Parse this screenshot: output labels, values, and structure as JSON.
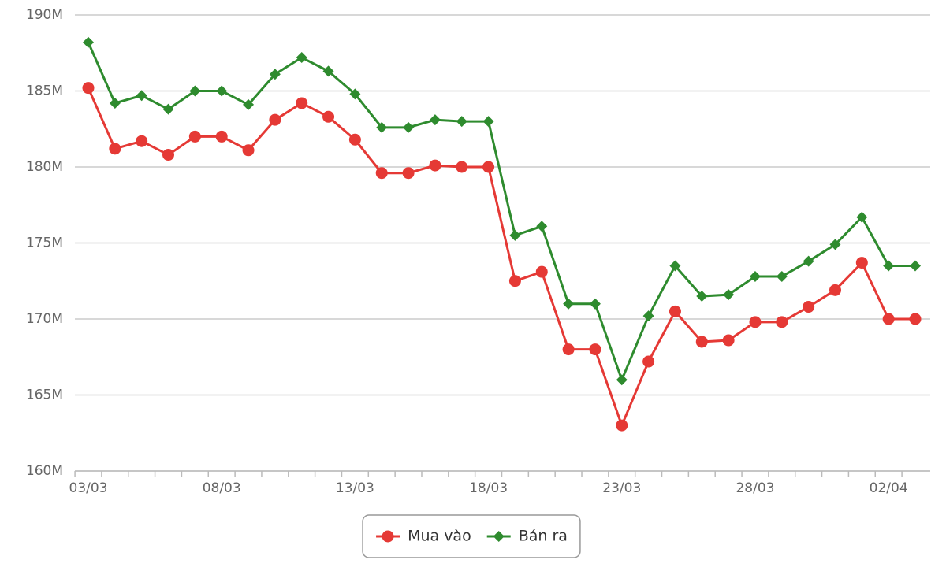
{
  "chart_data": {
    "type": "line",
    "categories": [
      "03/03",
      null,
      null,
      null,
      null,
      "08/03",
      null,
      null,
      null,
      null,
      "13/03",
      null,
      null,
      null,
      null,
      "18/03",
      null,
      null,
      null,
      null,
      "23/03",
      null,
      null,
      null,
      null,
      "28/03",
      null,
      null,
      null,
      null,
      "02/04",
      null
    ],
    "series": [
      {
        "name": "Mua vào",
        "color": "#e53935",
        "marker": "circle",
        "values": [
          185.2,
          181.2,
          181.7,
          180.8,
          182.0,
          182.0,
          181.1,
          183.1,
          184.2,
          183.3,
          181.8,
          179.6,
          179.6,
          180.1,
          180.0,
          180.0,
          172.5,
          173.1,
          168.0,
          168.0,
          163.0,
          167.2,
          170.5,
          168.5,
          168.6,
          169.8,
          169.8,
          170.8,
          171.9,
          173.7,
          170.0,
          170.0
        ]
      },
      {
        "name": "Bán ra",
        "color": "#2e8b2e",
        "marker": "diamond",
        "values": [
          188.2,
          184.2,
          184.7,
          183.8,
          185.0,
          185.0,
          184.1,
          186.1,
          187.2,
          186.3,
          184.8,
          182.6,
          182.6,
          183.1,
          183.0,
          183.0,
          175.5,
          176.1,
          171.0,
          171.0,
          166.0,
          170.2,
          173.5,
          171.5,
          171.6,
          172.8,
          172.8,
          173.8,
          174.9,
          176.7,
          173.5,
          173.5
        ]
      }
    ],
    "ylim": [
      160,
      190
    ],
    "yticks": [
      {
        "value": 160,
        "label": "160M"
      },
      {
        "value": 165,
        "label": "165M"
      },
      {
        "value": 170,
        "label": "170M"
      },
      {
        "value": 175,
        "label": "175M"
      },
      {
        "value": 180,
        "label": "180M"
      },
      {
        "value": 185,
        "label": "185M"
      },
      {
        "value": 190,
        "label": "190M"
      }
    ],
    "grid": true,
    "legend": "bottom"
  }
}
